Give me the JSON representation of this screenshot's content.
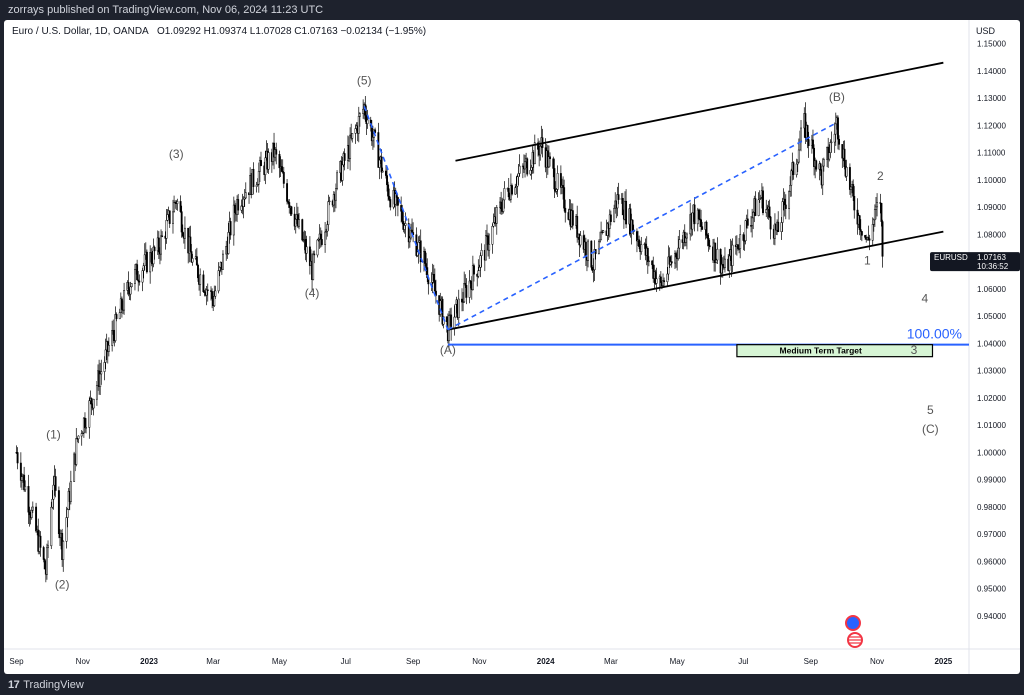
{
  "header": {
    "published": "zorrays published on TradingView.com, Nov 06, 2024 11:23 UTC"
  },
  "footer": {
    "logo_glyph": "17",
    "brand": "TradingView"
  },
  "chart_data": {
    "type": "candlestick",
    "title": "Euro / U.S. Dollar, 1D, OANDA",
    "ohlc_label": "O1.09292  H1.09374  L1.07028  C1.07163  −0.02134  (−1.95%)",
    "currency": "USD",
    "symbol": "EURUSD",
    "last_price": "1.07163",
    "countdown": "10:36:52",
    "ylim": [
      0.93,
      1.155
    ],
    "y_ticks": [
      "1.15000",
      "1.14000",
      "1.13000",
      "1.12000",
      "1.11000",
      "1.10000",
      "1.09000",
      "1.08000",
      "1.07000",
      "1.06000",
      "1.05000",
      "1.04000",
      "1.03000",
      "1.02000",
      "1.01000",
      "1.00000",
      "0.99000",
      "0.98000",
      "0.97000",
      "0.96000",
      "0.95000",
      "0.94000"
    ],
    "x_ticks": [
      "Sep",
      "Nov",
      "2023",
      "Mar",
      "May",
      "Jul",
      "Sep",
      "Nov",
      "2024",
      "Mar",
      "May",
      "Jul",
      "Sep",
      "Nov",
      "2025"
    ],
    "price_path": [
      [
        "2022-09-01",
        1.0
      ],
      [
        "2022-09-28",
        0.956
      ],
      [
        "2022-10-05",
        0.99
      ],
      [
        "2022-10-13",
        0.965
      ],
      [
        "2022-10-27",
        1.005
      ],
      [
        "2022-11-10",
        1.02
      ],
      [
        "2022-11-30",
        1.045
      ],
      [
        "2022-12-15",
        1.063
      ],
      [
        "2023-01-10",
        1.075
      ],
      [
        "2023-01-26",
        1.093
      ],
      [
        "2023-02-10",
        1.07
      ],
      [
        "2023-03-01",
        1.056
      ],
      [
        "2023-03-23",
        1.092
      ],
      [
        "2023-04-26",
        1.11
      ],
      [
        "2023-05-31",
        1.067
      ],
      [
        "2023-06-21",
        1.097
      ],
      [
        "2023-07-18",
        1.127
      ],
      [
        "2023-08-10",
        1.095
      ],
      [
        "2023-09-10",
        1.072
      ],
      [
        "2023-10-03",
        1.045
      ],
      [
        "2023-10-20",
        1.06
      ],
      [
        "2023-11-05",
        1.073
      ],
      [
        "2023-11-25",
        1.095
      ],
      [
        "2023-12-28",
        1.113
      ],
      [
        "2024-01-15",
        1.095
      ],
      [
        "2024-02-14",
        1.069
      ],
      [
        "2024-03-08",
        1.094
      ],
      [
        "2024-04-16",
        1.061
      ],
      [
        "2024-05-16",
        1.088
      ],
      [
        "2024-06-14",
        1.067
      ],
      [
        "2024-07-17",
        1.094
      ],
      [
        "2024-08-01",
        1.08
      ],
      [
        "2024-08-26",
        1.12
      ],
      [
        "2024-09-11",
        1.101
      ],
      [
        "2024-09-25",
        1.121
      ],
      [
        "2024-10-10",
        1.092
      ],
      [
        "2024-10-23",
        1.077
      ],
      [
        "2024-11-04",
        1.093
      ],
      [
        "2024-11-06",
        1.0716
      ]
    ],
    "annotations": {
      "waves": [
        {
          "text": "(1)",
          "x": "2022-10-05",
          "y": 1.005
        },
        {
          "text": "(2)",
          "x": "2022-10-13",
          "y": 0.95
        },
        {
          "text": "(3)",
          "x": "2023-01-26",
          "y": 1.108
        },
        {
          "text": "(4)",
          "x": "2023-05-31",
          "y": 1.057
        },
        {
          "text": "(5)",
          "x": "2023-07-18",
          "y": 1.135
        },
        {
          "text": "(A)",
          "x": "2023-10-03",
          "y": 1.036
        },
        {
          "text": "(B)",
          "x": "2024-09-25",
          "y": 1.129
        },
        {
          "text": "1",
          "x": "2024-10-23",
          "y": 1.069
        },
        {
          "text": "2",
          "x": "2024-11-04",
          "y": 1.1
        },
        {
          "text": "3",
          "x": "2024-12-05",
          "y": 1.036
        },
        {
          "text": "4",
          "x": "2024-12-15",
          "y": 1.055
        },
        {
          "text": "5",
          "x": "2024-12-20",
          "y": 1.014
        },
        {
          "text": "(C)",
          "x": "2024-12-20",
          "y": 1.007
        }
      ],
      "channel_upper": [
        [
          "2023-10-10",
          1.107
        ],
        [
          "2025-01-01",
          1.143
        ]
      ],
      "channel_lower": [
        [
          "2023-10-03",
          1.045
        ],
        [
          "2025-01-01",
          1.081
        ]
      ],
      "fib_line": {
        "label": "100.00%",
        "y": 1.0395
      },
      "target_box": {
        "label": "Medium Term Target",
        "x_start": "2024-06-25",
        "x_end": "2024-12-22",
        "y_top": 1.0395,
        "y_bottom": 1.0355
      },
      "dashed_lines": [
        [
          [
            "2023-07-18",
            1.127
          ],
          [
            "2023-10-03",
            1.045
          ]
        ],
        [
          [
            "2023-10-03",
            1.045
          ],
          [
            "2024-09-25",
            1.121
          ]
        ]
      ]
    }
  },
  "colors": {
    "background": "#ffffff",
    "candles": "#000000",
    "channel": "#000000",
    "fib_line": "#2962ff",
    "fib_label": "#2962ff",
    "dashed": "#2962ff",
    "target_fill": "#d7f5d5",
    "label_gray": "#555555",
    "price_tag_bg": "#131722"
  }
}
